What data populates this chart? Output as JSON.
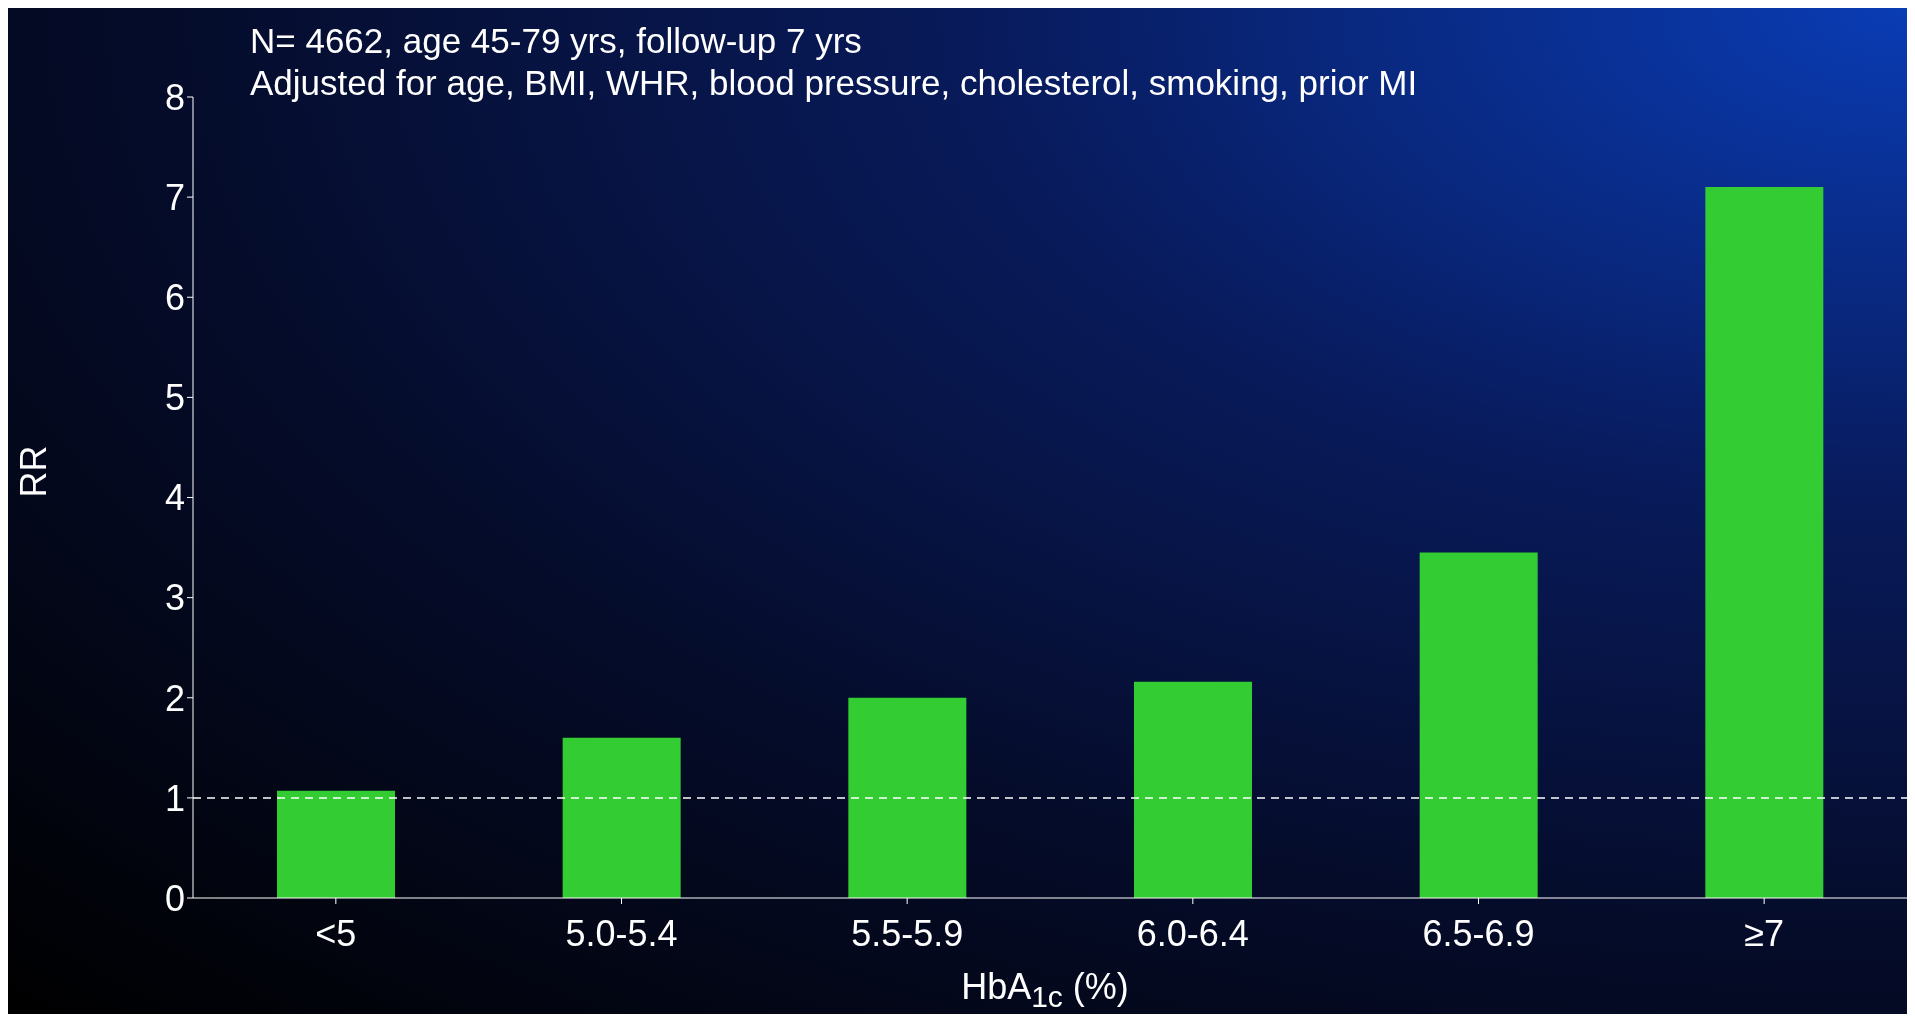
{
  "chart_data": {
    "type": "bar",
    "title": "N= 4662, age 45-79 yrs, follow-up 7 yrs",
    "subtitle": "Adjusted for age, BMI, WHR, blood pressure, cholesterol, smoking, prior MI",
    "xlabel": "HbA$_{1c}$ (%)",
    "ylabel": "RR",
    "categories": [
      "<5",
      "5.0-5.4",
      "5.5-5.9",
      "6.0-6.4",
      "6.5-6.9",
      "≥7"
    ],
    "values": [
      1.07,
      1.6,
      2.0,
      2.16,
      3.45,
      7.1
    ],
    "color": "#33cc33",
    "ylim": [
      0,
      8
    ],
    "yticks": [
      0,
      1,
      2,
      3,
      4,
      5,
      6,
      7,
      8
    ],
    "ref_lines": [
      {
        "axis": "y",
        "value": 1,
        "color": "#ffffff",
        "line_style": "dashed"
      }
    ],
    "grid": false,
    "legend": false
  }
}
